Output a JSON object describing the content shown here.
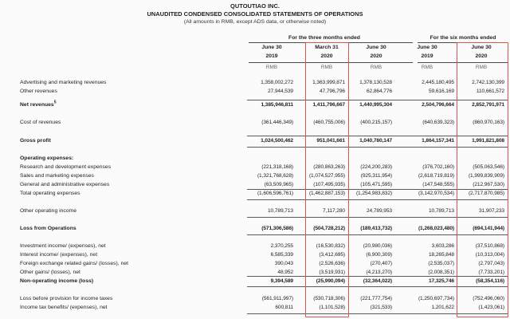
{
  "title": {
    "company": "QUTOUTIAO INC.",
    "statement": "UNAUDITED CONDENSED CONSOLIDATED STATEMENTS OF OPERATIONS",
    "note": "(All amounts in RMB, except ADS data, or otherwise noted)"
  },
  "column_groups": [
    {
      "label": "For the three months ended",
      "span": 3
    },
    {
      "label": "For the six months ended",
      "span": 2
    }
  ],
  "columns": [
    {
      "period": "June 30",
      "year": "2019",
      "unit": "RMB",
      "highlighted": false
    },
    {
      "period": "March 31",
      "year": "2020",
      "unit": "RMB",
      "highlighted": true
    },
    {
      "period": "June 30",
      "year": "2020",
      "unit": "RMB",
      "highlighted": false
    },
    {
      "period": "June 30",
      "year": "2019",
      "unit": "RMB",
      "highlighted": false
    },
    {
      "period": "June 30",
      "year": "2020",
      "unit": "RMB",
      "highlighted": true
    }
  ],
  "highlight_color": "#dd5448",
  "rows": [
    {
      "label": "Advertising and marketing revenues",
      "values": [
        "1,358,002,272",
        "1,363,999,871",
        "1,378,130,528",
        "2,445,180,495",
        "2,742,130,399"
      ]
    },
    {
      "label": "Other revenues",
      "values": [
        "27,944,539",
        "47,796,796",
        "62,864,776",
        "59,616,169",
        "110,661,572"
      ]
    },
    {
      "label": "Net revenues",
      "sup": "5",
      "emphasis": true,
      "values": [
        "1,385,946,811",
        "1,411,796,667",
        "1,440,995,304",
        "2,504,796,664",
        "2,852,791,971"
      ]
    },
    {
      "label": "Cost of revenues",
      "values": [
        "(361,446,349)",
        "(460,755,006)",
        "(400,215,157)",
        "(640,639,323)",
        "(860,970,163)"
      ]
    },
    {
      "label": "Gross profit",
      "emphasis": true,
      "values": [
        "1,024,500,462",
        "951,041,661",
        "1,040,780,147",
        "1,864,157,341",
        "1,991,821,808"
      ]
    },
    {
      "label": "Operating expenses:",
      "emphasis": true,
      "values": [
        "",
        "",
        "",
        "",
        ""
      ]
    },
    {
      "label": "Research and development expenses",
      "values": [
        "(221,318,168)",
        "(280,863,263)",
        "(224,200,283)",
        "(376,702,160)",
        "(505,063,546)"
      ]
    },
    {
      "label": "Sales and marketing expenses",
      "values": [
        "(1,321,768,628)",
        "(1,074,527,955)",
        "(925,311,954)",
        "(2,618,719,819)",
        "(1,999,839,909)"
      ]
    },
    {
      "label": "General and administrative expenses",
      "values": [
        "(63,509,965)",
        "(107,495,935)",
        "(105,471,595)",
        "(147,548,555)",
        "(212,967,530)"
      ]
    },
    {
      "label": "Total operating expenses",
      "values": [
        "(1,606,596,761)",
        "(1,462,887,153)",
        "(1,254,983,832)",
        "(3,142,970,534)",
        "(2,717,870,985)"
      ]
    },
    {
      "label": "Other operating income",
      "values": [
        "10,789,713",
        "7,117,280",
        "24,789,953",
        "10,789,713",
        "31,907,233"
      ]
    },
    {
      "label": "Loss from Operations",
      "emphasis": true,
      "values": [
        "(571,306,586)",
        "(504,728,212)",
        "(189,413,732)",
        "(1,268,023,480)",
        "(694,141,944)"
      ]
    },
    {
      "label": "Investment income/ (expenses), net",
      "values": [
        "2,370,255",
        "(16,530,832)",
        "(20,980,036)",
        "3,603,286",
        "(37,510,868)"
      ]
    },
    {
      "label": "Interest income/ (expenses), net",
      "values": [
        "6,585,339",
        "(3,412,695)",
        "(6,900,309)",
        "18,265,848",
        "(10,313,004)"
      ]
    },
    {
      "label": "Foreign exchange related gains/ (losses), net",
      "values": [
        "390,043",
        "(2,526,636)",
        "(270,407)",
        "(2,535,037)",
        "(2,797,043)"
      ]
    },
    {
      "label": "Other gains/ (losses), net",
      "values": [
        "48,952",
        "(3,519,931)",
        "(4,213,270)",
        "(2,008,351)",
        "(7,733,201)"
      ]
    },
    {
      "label": "Non-operating income (loss)",
      "emphasis": true,
      "values": [
        "9,394,589",
        "(25,990,094)",
        "(32,364,022)",
        "17,325,746",
        "(58,354,116)"
      ]
    },
    {
      "label": "Loss before provision for income taxes",
      "values": [
        "(561,911,997)",
        "(530,718,306)",
        "(221,777,754)",
        "(1,250,697,734)",
        "(752,496,060)"
      ]
    },
    {
      "label": "Income tax benefits/ (expenses), net",
      "values": [
        "600,811",
        "(1,101,528)",
        "(321,533)",
        "1,201,622",
        "(1,423,061)"
      ]
    }
  ]
}
